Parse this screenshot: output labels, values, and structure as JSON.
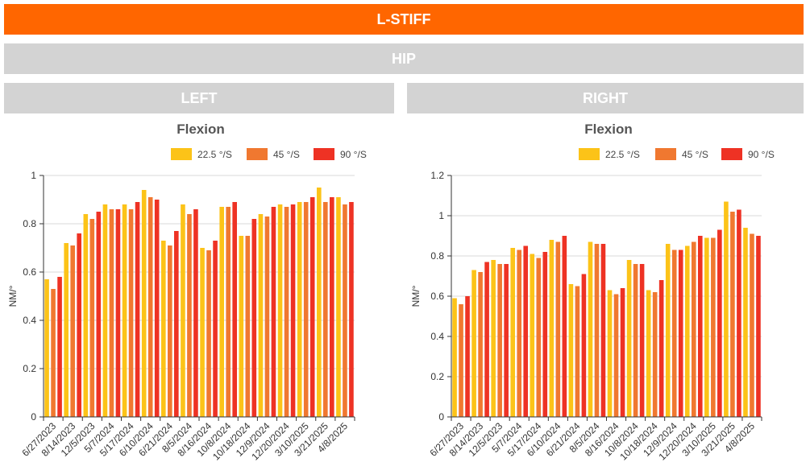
{
  "header": {
    "title": "L-STIFF",
    "subtitle": "HIP"
  },
  "colors": {
    "s1": "#fcc318",
    "s2": "#f07830",
    "s3": "#ee3224"
  },
  "chart_data": [
    {
      "type": "bar",
      "panel": "LEFT",
      "title": "Flexion",
      "ylabel": "NM/°",
      "xlabel": "",
      "ylim": [
        0,
        1
      ],
      "yticks": [
        0,
        0.2,
        0.4,
        0.6,
        0.8,
        1
      ],
      "legend_position": "top-right",
      "grid": true,
      "categories": [
        "6/27/2023",
        "8/14/2023",
        "12/5/2023",
        "5/7/2024",
        "5/17/2024",
        "6/10/2024",
        "6/21/2024",
        "8/5/2024",
        "8/16/2024",
        "10/8/2024",
        "10/18/2024",
        "12/9/2024",
        "12/20/2024",
        "3/10/2025",
        "3/21/2025",
        "4/8/2025"
      ],
      "series": [
        {
          "name": "22.5 °/S",
          "values": [
            0.57,
            0.72,
            0.84,
            0.88,
            0.88,
            0.94,
            0.73,
            0.88,
            0.7,
            0.87,
            0.75,
            0.84,
            0.88,
            0.89,
            0.95,
            0.91
          ]
        },
        {
          "name": "45 °/S",
          "values": [
            0.53,
            0.71,
            0.82,
            0.86,
            0.86,
            0.91,
            0.71,
            0.84,
            0.69,
            0.87,
            0.75,
            0.83,
            0.87,
            0.89,
            0.89,
            0.88
          ]
        },
        {
          "name": "90 °/S",
          "values": [
            0.58,
            0.76,
            0.85,
            0.86,
            0.89,
            0.9,
            0.77,
            0.86,
            0.73,
            0.89,
            0.82,
            0.87,
            0.88,
            0.91,
            0.91,
            0.89
          ]
        }
      ]
    },
    {
      "type": "bar",
      "panel": "RIGHT",
      "title": "Flexion",
      "ylabel": "NM/°",
      "xlabel": "",
      "ylim": [
        0,
        1.2
      ],
      "yticks": [
        0,
        0.2,
        0.4,
        0.6,
        0.8,
        1,
        1.2
      ],
      "legend_position": "top-right",
      "grid": true,
      "categories": [
        "6/27/2023",
        "8/14/2023",
        "12/5/2023",
        "5/7/2024",
        "5/17/2024",
        "6/10/2024",
        "6/21/2024",
        "8/5/2024",
        "8/16/2024",
        "10/8/2024",
        "10/18/2024",
        "12/9/2024",
        "12/20/2024",
        "3/10/2025",
        "3/21/2025",
        "4/8/2025"
      ],
      "series": [
        {
          "name": "22.5 °/S",
          "values": [
            0.59,
            0.73,
            0.78,
            0.84,
            0.81,
            0.88,
            0.66,
            0.87,
            0.63,
            0.78,
            0.63,
            0.86,
            0.85,
            0.89,
            1.07,
            0.94
          ]
        },
        {
          "name": "45 °/S",
          "values": [
            0.56,
            0.72,
            0.76,
            0.83,
            0.79,
            0.87,
            0.65,
            0.86,
            0.61,
            0.76,
            0.62,
            0.83,
            0.87,
            0.89,
            1.02,
            0.91
          ]
        },
        {
          "name": "90 °/S",
          "values": [
            0.6,
            0.77,
            0.76,
            0.85,
            0.82,
            0.9,
            0.71,
            0.86,
            0.64,
            0.76,
            0.68,
            0.83,
            0.9,
            0.93,
            1.03,
            0.9
          ]
        }
      ]
    }
  ]
}
